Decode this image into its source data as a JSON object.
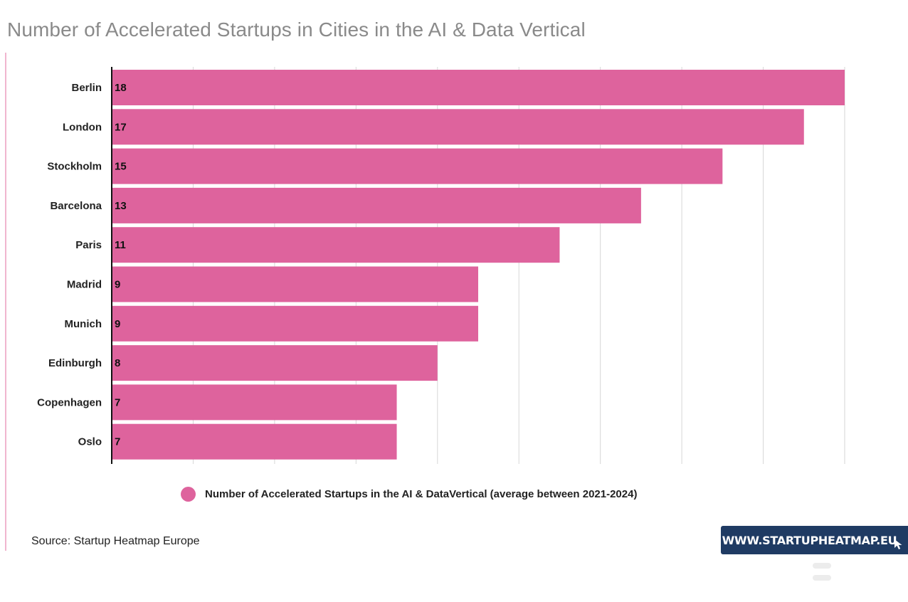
{
  "title": "Number of Accelerated Startups in Cities in the AI & Data Vertical",
  "source": "Source: Startup Heatmap Europe",
  "brand": {
    "url_label": "WWW.STARTUPHEATMAP.EU"
  },
  "icons": {
    "brand_cursor": "cursor-arrow-icon",
    "legend_marker": "legend-dot-icon"
  },
  "colors": {
    "bar": "#de639d",
    "accent": "#f0b6cf",
    "badge": "#1f3b63"
  },
  "chart_data": {
    "type": "bar",
    "orientation": "horizontal",
    "categories": [
      "Berlin",
      "London",
      "Stockholm",
      "Barcelona",
      "Paris",
      "Madrid",
      "Munich",
      "Edinburgh",
      "Copenhagen",
      "Oslo"
    ],
    "series": [
      {
        "name": "Number of Accelerated Startups in the AI & DataVertical (average between 2021-2024)",
        "values": [
          18,
          17,
          15,
          13,
          11,
          9,
          9,
          8,
          7,
          7
        ]
      }
    ],
    "xlim": [
      0,
      18
    ],
    "grid": true,
    "data_labels": true,
    "legend_position": "bottom"
  }
}
